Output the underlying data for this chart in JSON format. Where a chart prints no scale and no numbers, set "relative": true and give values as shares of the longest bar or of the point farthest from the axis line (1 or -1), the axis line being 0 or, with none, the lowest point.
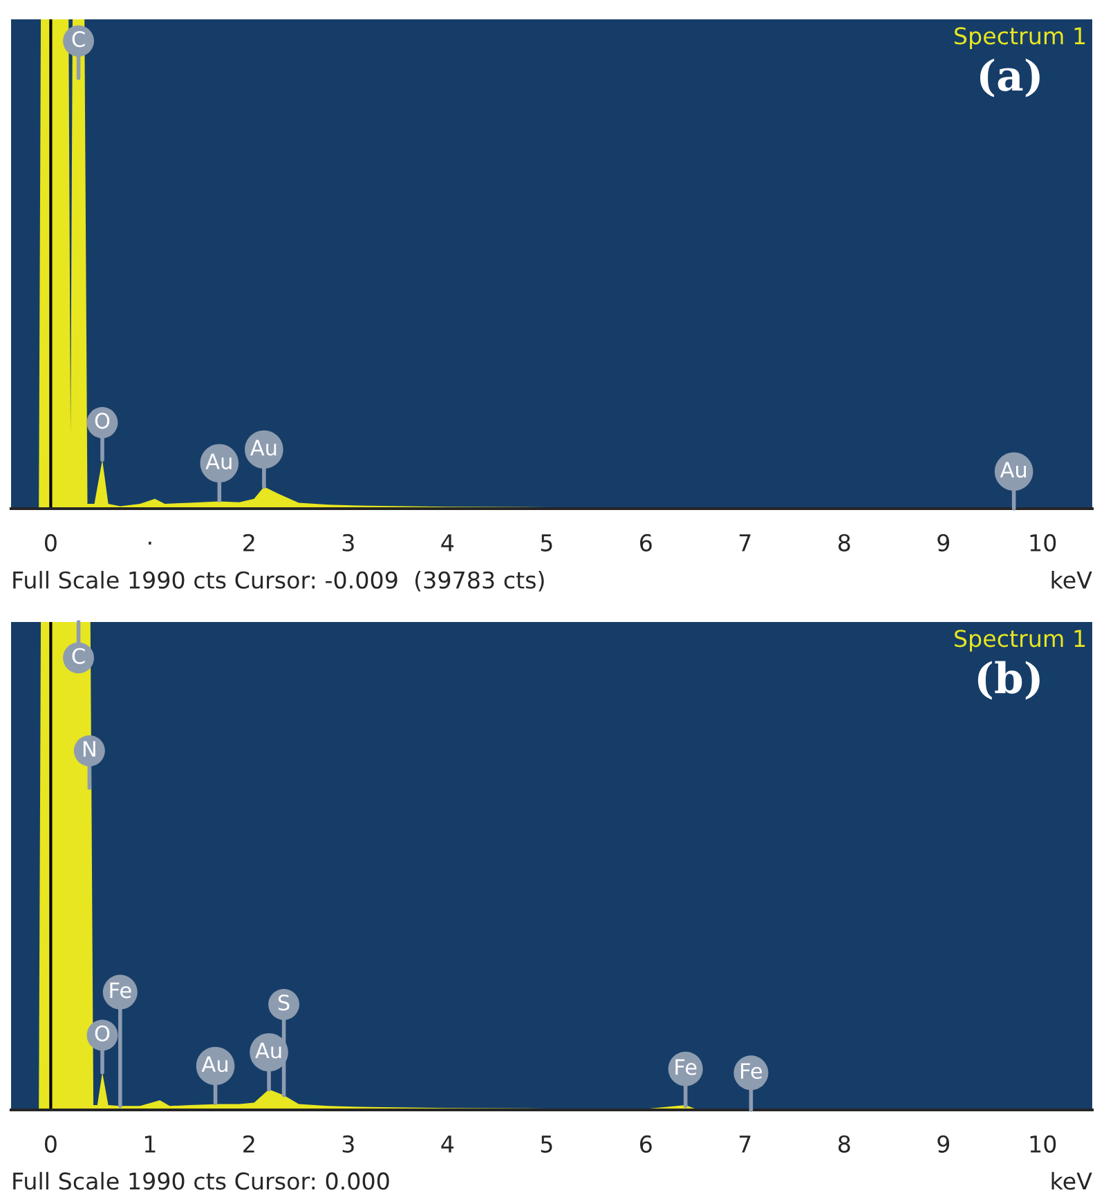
{
  "chart_data": [
    {
      "type": "area",
      "title": "Spectrum 1",
      "subtitle": "(a)",
      "xlabel": "keV",
      "relative": true,
      "xlim": [
        -0.4,
        10.5
      ],
      "xticks": [
        0,
        {
          "value": 1,
          "label": "·"
        },
        2,
        3,
        4,
        5,
        6,
        7,
        8,
        9,
        10
      ],
      "series": [
        {
          "color": "#e8e620",
          "x": [
            -0.4,
            -0.12,
            -0.1,
            0.18,
            0.2,
            0.22,
            0.34,
            0.37,
            0.44,
            0.52,
            0.58,
            0.7,
            0.9,
            1.05,
            1.15,
            1.4,
            1.7,
            1.9,
            2.05,
            2.15,
            2.3,
            2.5,
            2.8,
            3.2,
            4,
            5,
            6,
            7,
            8,
            9.7,
            10.5
          ],
          "values": [
            0,
            0,
            1,
            1,
            0.15,
            1,
            1,
            0.01,
            0.01,
            0.1,
            0.01,
            0.005,
            0.01,
            0.02,
            0.01,
            0.012,
            0.015,
            0.013,
            0.02,
            0.045,
            0.03,
            0.012,
            0.008,
            0.006,
            0.004,
            0.003,
            0.002,
            0.001,
            0,
            0.002,
            0
          ]
        }
      ],
      "ref_lines": [
        {
          "axis": "x",
          "value": 0,
          "color": "#000000"
        }
      ],
      "annotations": [
        {
          "text": "C",
          "x": 0.28,
          "y": 0.88
        },
        {
          "text": "O",
          "x": 0.52,
          "y": 0.1
        },
        {
          "text": "Au",
          "x": 1.7,
          "y": 0.017
        },
        {
          "text": "Au",
          "x": 2.15,
          "y": 0.045
        },
        {
          "text": "Au",
          "x": 9.71,
          "y": 0
        },
        "Full Scale 1990 cts Cursor: -0.009  (39783 cts)"
      ]
    },
    {
      "type": "area",
      "title": "Spectrum 1",
      "subtitle": "(b)",
      "xlabel": "keV",
      "relative": true,
      "xlim": [
        -0.4,
        10.5
      ],
      "xticks": [
        0,
        1,
        2,
        3,
        4,
        5,
        6,
        7,
        8,
        9,
        10
      ],
      "series": [
        {
          "color": "#e8e620",
          "x": [
            -0.4,
            -0.12,
            -0.1,
            0.4,
            0.43,
            0.47,
            0.52,
            0.58,
            0.7,
            0.9,
            1.1,
            1.2,
            1.4,
            1.7,
            1.9,
            2.05,
            2.2,
            2.35,
            2.5,
            2.8,
            3.2,
            4,
            5,
            6,
            6.4,
            6.5,
            7,
            8,
            10.5
          ],
          "values": [
            0,
            0,
            1,
            1,
            0.01,
            0.01,
            0.077,
            0.01,
            0.008,
            0.008,
            0.02,
            0.008,
            0.01,
            0.012,
            0.012,
            0.015,
            0.042,
            0.03,
            0.012,
            0.008,
            0.006,
            0.004,
            0.003,
            0.002,
            0.01,
            0.002,
            0.001,
            0,
            0
          ]
        }
      ],
      "ref_lines": [
        {
          "axis": "x",
          "value": 0,
          "color": "#000000"
        }
      ],
      "annotations": [
        {
          "text": "C",
          "x": 0.28,
          "y": 1
        },
        {
          "text": "N",
          "x": 0.39,
          "y": 0.66
        },
        {
          "text": "O",
          "x": 0.52,
          "y": 0.077
        },
        {
          "text": "Fe",
          "x": 0.7,
          "y": 0.008
        },
        {
          "text": "Au",
          "x": 1.66,
          "y": 0.014
        },
        {
          "text": "Au",
          "x": 2.2,
          "y": 0.042
        },
        {
          "text": "S",
          "x": 2.35,
          "y": 0.03
        },
        {
          "text": "Fe",
          "x": 6.4,
          "y": 0.008
        },
        {
          "text": "Fe",
          "x": 7.06,
          "y": 0
        },
        "Full Scale 1990 cts Cursor: 0.000"
      ]
    }
  ]
}
